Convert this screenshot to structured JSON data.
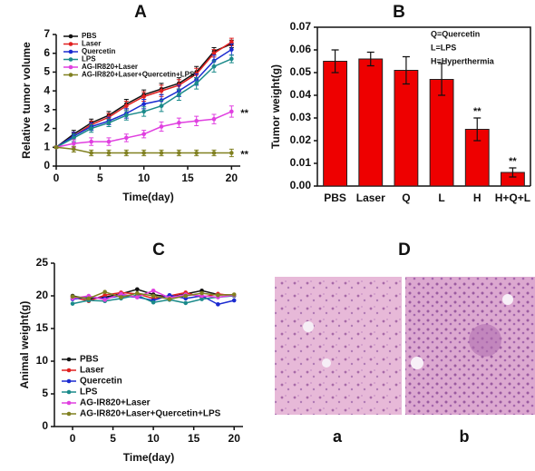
{
  "chart_data": [
    {
      "type": "line",
      "label": "A",
      "xlabel": "Time(day)",
      "ylabel": "Relative tumor volume",
      "x": [
        0,
        2,
        4,
        6,
        8,
        10,
        12,
        14,
        16,
        18,
        20
      ],
      "xlim": [
        0,
        21
      ],
      "xticks": [
        0,
        5,
        10,
        15,
        20
      ],
      "ylim": [
        0,
        7
      ],
      "yticks": [
        0,
        1,
        2,
        3,
        4,
        5,
        6,
        7
      ],
      "legend": "upper left",
      "series": [
        {
          "name": "PBS",
          "color": "#111111",
          "values": [
            1,
            1.7,
            2.3,
            2.7,
            3.3,
            3.8,
            4.1,
            4.4,
            5.0,
            6.1,
            6.5
          ],
          "errors": [
            0.05,
            0.2,
            0.2,
            0.2,
            0.25,
            0.25,
            0.3,
            0.3,
            0.3,
            0.2,
            0.2
          ]
        },
        {
          "name": "Laser",
          "color": "#e02020",
          "values": [
            1,
            1.6,
            2.2,
            2.6,
            3.2,
            3.7,
            4.0,
            4.3,
            4.9,
            6.0,
            6.6
          ],
          "errors": [
            0.05,
            0.2,
            0.2,
            0.2,
            0.25,
            0.25,
            0.3,
            0.3,
            0.3,
            0.2,
            0.2
          ]
        },
        {
          "name": "Quercetin",
          "color": "#1a2ad0",
          "values": [
            1,
            1.6,
            2.1,
            2.4,
            2.8,
            3.3,
            3.5,
            4.0,
            4.6,
            5.6,
            6.2
          ],
          "errors": [
            0.05,
            0.2,
            0.2,
            0.2,
            0.25,
            0.25,
            0.3,
            0.3,
            0.3,
            0.3,
            0.3
          ]
        },
        {
          "name": "LPS",
          "color": "#1a8a8a",
          "values": [
            1,
            1.5,
            2.0,
            2.3,
            2.7,
            2.9,
            3.2,
            3.8,
            4.4,
            5.3,
            5.7
          ],
          "errors": [
            0.05,
            0.2,
            0.2,
            0.2,
            0.25,
            0.25,
            0.3,
            0.3,
            0.3,
            0.3,
            0.2
          ]
        },
        {
          "name": "AG-IR820+Laser",
          "color": "#e040e0",
          "values": [
            1,
            1.2,
            1.3,
            1.3,
            1.5,
            1.7,
            2.1,
            2.3,
            2.4,
            2.5,
            2.9
          ],
          "errors": [
            0.05,
            0.2,
            0.2,
            0.2,
            0.2,
            0.2,
            0.25,
            0.25,
            0.25,
            0.25,
            0.3
          ],
          "annotation": "**"
        },
        {
          "name": "AG-IR820+Laser+Quercetin+LPS",
          "color": "#808020",
          "values": [
            1,
            0.9,
            0.7,
            0.7,
            0.7,
            0.7,
            0.7,
            0.7,
            0.7,
            0.7,
            0.7
          ],
          "errors": [
            0.05,
            0.15,
            0.15,
            0.15,
            0.15,
            0.15,
            0.15,
            0.15,
            0.15,
            0.15,
            0.2
          ],
          "annotation": "**"
        }
      ]
    },
    {
      "type": "bar",
      "label": "B",
      "ylabel": "Tumor weight(g)",
      "color": "#ee0000",
      "categories": [
        "PBS",
        "Laser",
        "Q",
        "L",
        "H",
        "H+Q+L"
      ],
      "values": [
        0.055,
        0.056,
        0.051,
        0.047,
        0.025,
        0.006
      ],
      "errors": [
        0.005,
        0.003,
        0.006,
        0.007,
        0.005,
        0.002
      ],
      "annotations": [
        null,
        null,
        null,
        null,
        "**",
        "**"
      ],
      "notes": [
        "Q=Quercetin",
        "L=LPS",
        "H=Hyperthermia"
      ],
      "ylim": [
        0,
        0.07
      ],
      "yticks": [
        {
          "value": 0,
          "label": "0.00"
        },
        {
          "value": 0.01,
          "label": "0.01"
        },
        {
          "value": 0.02,
          "label": "0.02"
        },
        {
          "value": 0.03,
          "label": "0.03"
        },
        {
          "value": 0.04,
          "label": "0.04"
        },
        {
          "value": 0.05,
          "label": "0.05"
        },
        {
          "value": 0.06,
          "label": "0.06"
        },
        {
          "value": 0.07,
          "label": "0.07"
        }
      ]
    },
    {
      "type": "line",
      "label": "C",
      "xlabel": "Time(day)",
      "ylabel": "Animal weight(g)",
      "x": [
        0,
        2,
        4,
        6,
        8,
        10,
        12,
        14,
        16,
        18,
        20
      ],
      "xlim": [
        -2.25,
        21.1
      ],
      "xticks": [
        0,
        5,
        10,
        15,
        20
      ],
      "ylim": [
        0,
        25
      ],
      "yticks": [
        0,
        5,
        10,
        15,
        20,
        25
      ],
      "legend": "lower left",
      "series": [
        {
          "name": "PBS",
          "color": "#111111",
          "values": [
            20,
            19.5,
            19.8,
            20.3,
            21,
            20.2,
            19.8,
            20.3,
            20.8,
            20.2,
            20.1
          ]
        },
        {
          "name": "Laser",
          "color": "#e02020",
          "values": [
            19.8,
            19.2,
            20.1,
            20.5,
            20.3,
            19.6,
            20.0,
            20.5,
            19.8,
            20.3,
            20.0
          ]
        },
        {
          "name": "Quercetin",
          "color": "#1a2ad0",
          "values": [
            19.5,
            19.8,
            19.6,
            20.0,
            19.8,
            19.3,
            20.1,
            19.6,
            20.0,
            18.7,
            19.3
          ]
        },
        {
          "name": "LPS",
          "color": "#1a8a8a",
          "values": [
            18.8,
            19.3,
            19.2,
            19.6,
            20.1,
            19.0,
            19.4,
            18.9,
            19.5,
            19.8,
            20.0
          ]
        },
        {
          "name": "AG-IR820+Laser",
          "color": "#e040e0",
          "values": [
            19.6,
            20.0,
            19.4,
            20.3,
            19.8,
            20.8,
            19.7,
            20.2,
            20.0,
            19.8,
            20.1
          ]
        },
        {
          "name": "AG-IR820+Laser+Quercetin+LPS",
          "color": "#808020",
          "values": [
            19.9,
            19.6,
            20.6,
            19.8,
            20.4,
            20.0,
            19.5,
            20.0,
            20.4,
            20.1,
            20.2
          ]
        }
      ]
    }
  ],
  "images": {
    "label": "D",
    "captions": [
      "a",
      "b"
    ]
  }
}
